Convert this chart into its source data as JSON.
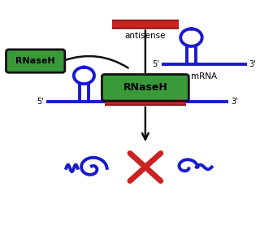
{
  "bg_color": "#ffffff",
  "antisense_bar_dark": "#8b1a1a",
  "antisense_bar_light": "#cc2222",
  "mrna_color": "#1a1acc",
  "rnaseH_box_color": "#3a9a3a",
  "rnaseH_box_edge": "#111111",
  "rnaseH_text_color": "#000000",
  "rnaseH_text": "RNaseH",
  "antisense_label": "antisense",
  "mrna_label": "mRNA",
  "arrow_color": "#111111",
  "cross_color": "#cc2222",
  "prime5": "5'",
  "prime3": "3'",
  "fig_width": 3.2,
  "fig_height": 2.89
}
